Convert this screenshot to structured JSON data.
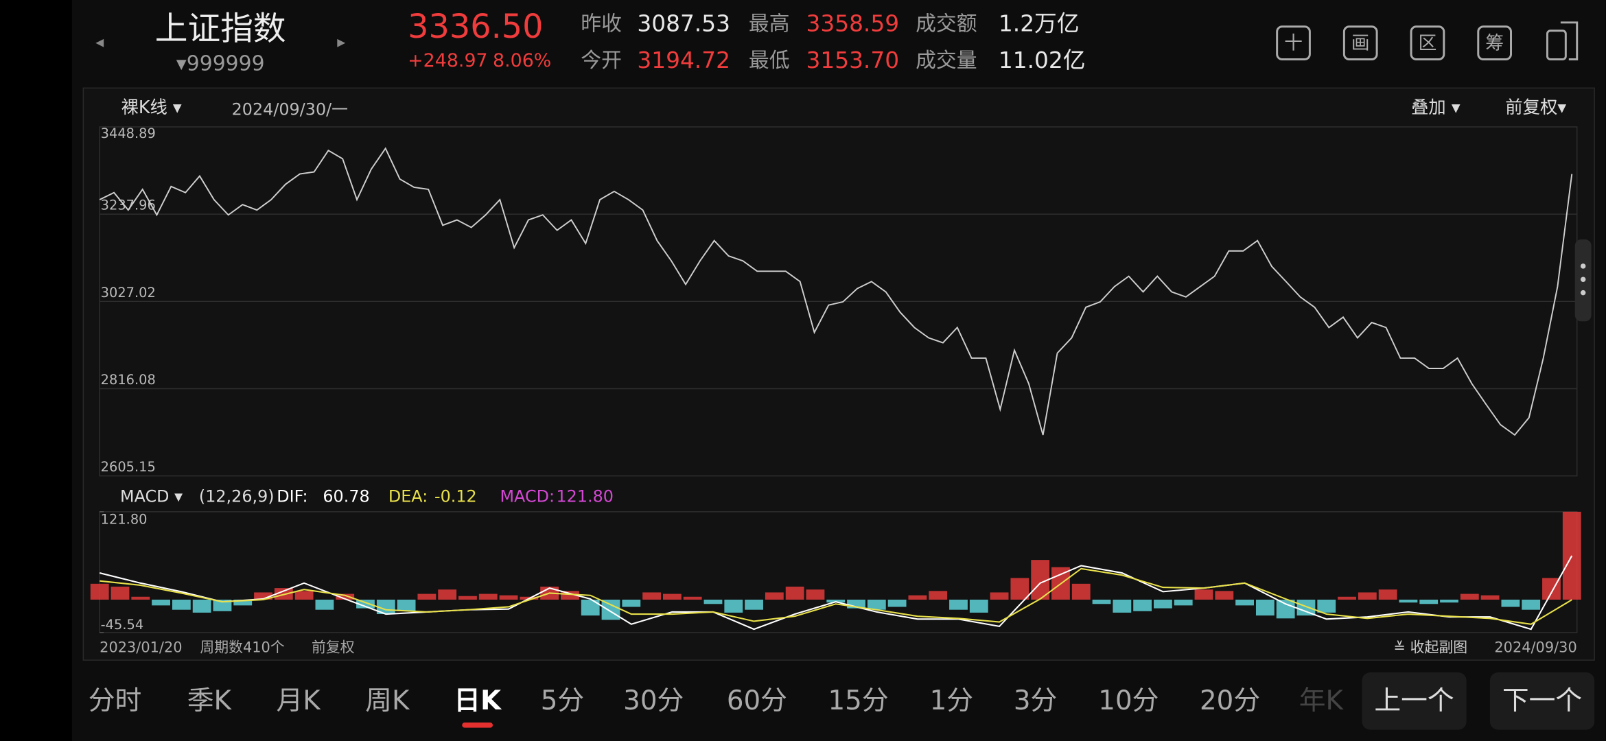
{
  "header": {
    "prev": "◂",
    "name": "上证指数",
    "next": "▸",
    "code": "▾999999",
    "price": "3336.50",
    "change": "+248.97",
    "change_pct": "8.06%",
    "stats": [
      {
        "label": "昨收",
        "value": "3087.53",
        "color": "#e8e8e8"
      },
      {
        "label": "最高",
        "value": "3358.59",
        "color": "#f03c3c"
      },
      {
        "label": "成交额",
        "value": "1.2万亿",
        "color": "#e8e8e8"
      },
      {
        "label": "今开",
        "value": "3194.72",
        "color": "#f03c3c"
      },
      {
        "label": "最低",
        "value": "3153.70",
        "color": "#f03c3c"
      },
      {
        "label": "成交量",
        "value": "11.02亿",
        "color": "#e8e8e8"
      }
    ]
  },
  "toolbar": {
    "icons": [
      "十",
      "画",
      "区",
      "筹"
    ]
  },
  "chart_options": {
    "style": "裸K线 ▾",
    "date": "2024/09/30/一",
    "overlay": "叠加 ▾",
    "adjust": "前复权▾"
  },
  "chart_data": [
    {
      "type": "line",
      "color": "#cfcfcf",
      "grid": true,
      "ylim": [
        2605.15,
        3448.89
      ],
      "yticks": [
        3448.89,
        3237.96,
        3027.02,
        2816.08,
        2605.15
      ],
      "values": [
        3273,
        3290,
        3248,
        3298,
        3236,
        3305,
        3290,
        3330,
        3273,
        3236,
        3261,
        3248,
        3273,
        3310,
        3335,
        3340,
        3392,
        3372,
        3273,
        3347,
        3397,
        3323,
        3303,
        3298,
        3211,
        3224,
        3206,
        3236,
        3273,
        3157,
        3224,
        3236,
        3199,
        3224,
        3167,
        3273,
        3293,
        3273,
        3248,
        3174,
        3125,
        3068,
        3125,
        3174,
        3137,
        3125,
        3100,
        3100,
        3100,
        3075,
        2952,
        3018,
        3026,
        3058,
        3075,
        3050,
        3001,
        2964,
        2939,
        2927,
        2964,
        2890,
        2890,
        2766,
        2909,
        2828,
        2704,
        2902,
        2939,
        3013,
        3026,
        3063,
        3088,
        3050,
        3088,
        3050,
        3038,
        3063,
        3088,
        3149,
        3149,
        3174,
        3112,
        3075,
        3038,
        3013,
        2964,
        2989,
        2939,
        2976,
        2964,
        2890,
        2890,
        2865,
        2865,
        2890,
        2828,
        2778,
        2729,
        2704,
        2746,
        2890,
        3063,
        3335
      ]
    },
    {
      "type": "macd",
      "title": "MACD ▾",
      "params": "(12,26,9)",
      "ylim": [
        -45.54,
        121.8
      ],
      "yticks": [
        {
          "value": 121.8,
          "label": "121.80"
        },
        -45.54
      ],
      "series": [
        {
          "name": "DIF:",
          "current": 60.78,
          "color": "#ffffff",
          "values": [
            37,
            23,
            11,
            -3,
            1,
            23,
            1,
            -20,
            -17,
            -14,
            -13,
            16,
            1,
            -34,
            -17,
            -17,
            -41,
            -20,
            -3,
            -17,
            -27,
            -27,
            -37,
            23,
            47,
            37,
            11,
            16,
            23,
            -6,
            -27,
            -24,
            -17,
            -24,
            -24,
            -41,
            60.78
          ]
        },
        {
          "name": "DEA:",
          "current": -0.12,
          "color": "#e8e04a",
          "values": [
            26,
            20,
            9,
            -3,
            0,
            14,
            6,
            -14,
            -17,
            -14,
            -10,
            9,
            6,
            -20,
            -20,
            -17,
            -30,
            -23,
            -6,
            -14,
            -23,
            -26,
            -31,
            1,
            43,
            34,
            17,
            16,
            23,
            1,
            -20,
            -26,
            -20,
            -23,
            -26,
            -34,
            -0.12
          ]
        },
        {
          "name": "MACD:",
          "current": 121.8,
          "current_label": "121.80",
          "color": "#d447d4",
          "up_color": "#e23b3b",
          "down_color": "#5fd3d9",
          "values": [
            22,
            18,
            4,
            -8,
            -14,
            -18,
            -16,
            -8,
            10,
            16,
            12,
            -14,
            8,
            -12,
            -20,
            -16,
            8,
            14,
            5,
            8,
            6,
            4,
            18,
            12,
            -22,
            -28,
            -10,
            10,
            8,
            4,
            -6,
            -18,
            -14,
            10,
            18,
            14,
            -4,
            -12,
            -14,
            -10,
            6,
            12,
            -14,
            -18,
            10,
            30,
            55,
            45,
            22,
            -6,
            -18,
            -16,
            -12,
            -8,
            14,
            12,
            -8,
            -22,
            -26,
            -22,
            -18,
            4,
            10,
            14,
            -4,
            -6,
            -4,
            8,
            6,
            -10,
            -14,
            30,
            121.8
          ]
        }
      ]
    }
  ],
  "footer": {
    "start_date": "2023/01/20",
    "period_count": "周期数410个",
    "adjust": "前复权",
    "collapse": "≚ 收起副图",
    "end_date": "2024/09/30"
  },
  "tabs": {
    "items": [
      "分时",
      "季K",
      "月K",
      "周K",
      "日K",
      "5分",
      "30分",
      "60分",
      "15分",
      "1分",
      "3分",
      "10分",
      "20分",
      "年K"
    ],
    "selected": 4
  },
  "buttons": [
    "上一个",
    "下一个"
  ]
}
